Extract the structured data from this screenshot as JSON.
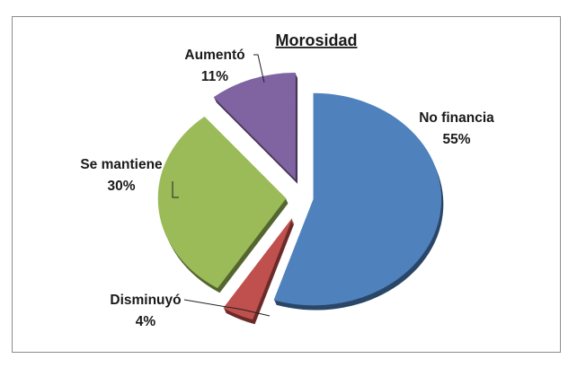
{
  "chart_data": {
    "type": "pie",
    "title": "Morosidad",
    "slices": [
      {
        "label": "No financia",
        "value": 55,
        "pct_label": "55%",
        "color": "#4f81bd"
      },
      {
        "label": "Disminuyó",
        "value": 4,
        "pct_label": "4%",
        "color": "#c0504d"
      },
      {
        "label": "Se mantiene",
        "value": 30,
        "pct_label": "30%",
        "color": "#9bbb59"
      },
      {
        "label": "Aumentó",
        "value": 11,
        "pct_label": "11%",
        "color": "#8064a2"
      }
    ],
    "exploded": true,
    "style": "3d"
  }
}
